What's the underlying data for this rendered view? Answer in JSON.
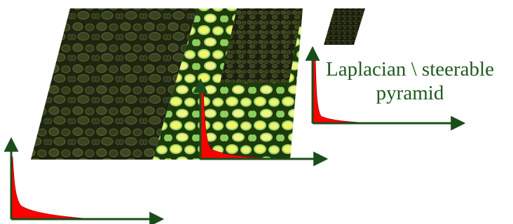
{
  "caption": {
    "line1": "Laplacian \\ steerable",
    "line2": "pyramid"
  },
  "colors": {
    "caption_text": "#1f5a1f",
    "axis": "#1b4d1b",
    "histogram_fill": "#ff0000",
    "band_dark_base": "#1d2410",
    "band_dark_cells": "#4a5428",
    "band_bright_base": "#1e3a0a",
    "band_bright_cells": "#f2f56a",
    "band_bright_glow": "#9cd96a"
  },
  "diagram": {
    "levels": [
      {
        "name": "level-0",
        "texture": "dark-scales-large"
      },
      {
        "name": "level-1",
        "texture": "bright-scales"
      },
      {
        "name": "level-2",
        "texture": "dark-scales-small"
      },
      {
        "name": "level-3",
        "texture": "dark-scales-tiny"
      }
    ],
    "histograms": [
      {
        "name": "histogram-0"
      },
      {
        "name": "histogram-1"
      },
      {
        "name": "histogram-2"
      }
    ]
  }
}
